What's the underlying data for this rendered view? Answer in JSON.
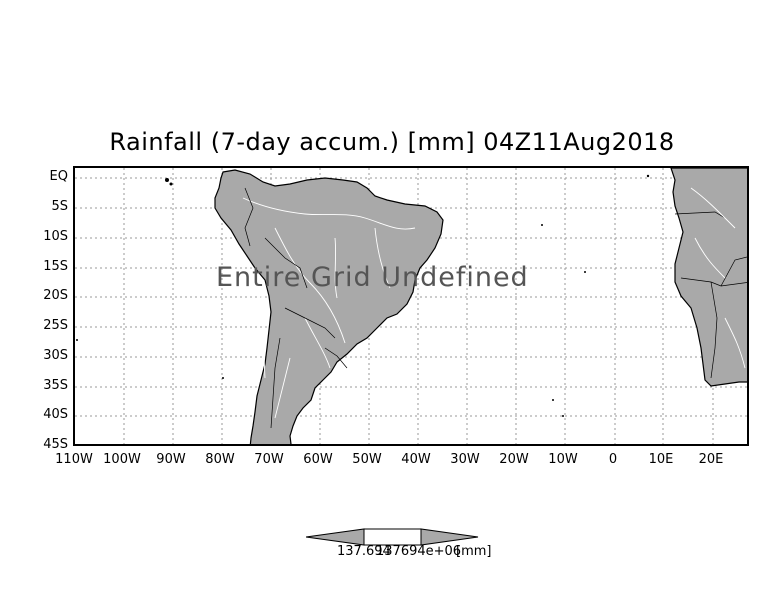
{
  "title": "Rainfall (7-day accum.) [mm] 04Z11Aug2018",
  "overlay_text": "Entire Grid Undefined",
  "lat_labels": [
    "EQ",
    "5S",
    "10S",
    "15S",
    "20S",
    "25S",
    "30S",
    "35S",
    "40S",
    "45S"
  ],
  "lon_labels": [
    "110W",
    "100W",
    "90W",
    "80W",
    "70W",
    "60W",
    "50W",
    "40W",
    "30W",
    "20W",
    "10W",
    "0",
    "10E",
    "20E"
  ],
  "colorbar": {
    "min_label": "137.694",
    "max_label": "137694e+06",
    "unit": "[mm]"
  },
  "colors": {
    "land": "#a9a9a9",
    "river": "#ffffff",
    "grid": "#999999",
    "border": "#000000"
  }
}
